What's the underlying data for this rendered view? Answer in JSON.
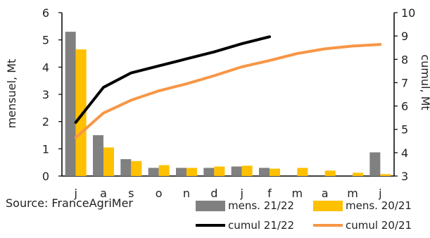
{
  "chart_data": {
    "type": "bar",
    "categories": [
      "j",
      "a",
      "s",
      "o",
      "n",
      "d",
      "j",
      "f",
      "m",
      "a",
      "m",
      "j"
    ],
    "series": [
      {
        "name": "mens. 21/22",
        "type": "bar",
        "axis": "left",
        "color": "#808080",
        "values": [
          5.3,
          1.5,
          0.62,
          0.3,
          0.3,
          0.3,
          0.35,
          0.3,
          null,
          null,
          null,
          0.87
        ]
      },
      {
        "name": "mens. 20/21",
        "type": "bar",
        "axis": "left",
        "color": "#FFC000",
        "values": [
          4.65,
          1.05,
          0.55,
          0.4,
          0.3,
          0.35,
          0.38,
          0.27,
          0.3,
          0.2,
          0.12,
          0.07
        ]
      },
      {
        "name": "cumul 21/22",
        "type": "line",
        "axis": "right",
        "color": "#000000",
        "values": [
          5.3,
          6.8,
          7.42,
          7.72,
          8.02,
          8.32,
          8.67,
          8.97,
          null,
          null,
          null,
          null
        ]
      },
      {
        "name": "cumul 20/21",
        "type": "line",
        "axis": "right",
        "color": "#F79646",
        "values": [
          4.65,
          5.7,
          6.25,
          6.65,
          6.95,
          7.3,
          7.68,
          7.95,
          8.25,
          8.45,
          8.57,
          8.64
        ]
      }
    ],
    "ylabel": "mensuel, Mt",
    "ylabel_right": "cumul, Mt",
    "ylim": [
      0,
      6
    ],
    "ylim_right": [
      3,
      10
    ],
    "yticks": [
      0,
      1,
      2,
      3,
      4,
      5,
      6
    ],
    "yticks_right": [
      3,
      4,
      5,
      6,
      7,
      8,
      9,
      10
    ],
    "grid": false,
    "legend_position": "bottom-right"
  },
  "source": "Source: FranceAgriMer"
}
